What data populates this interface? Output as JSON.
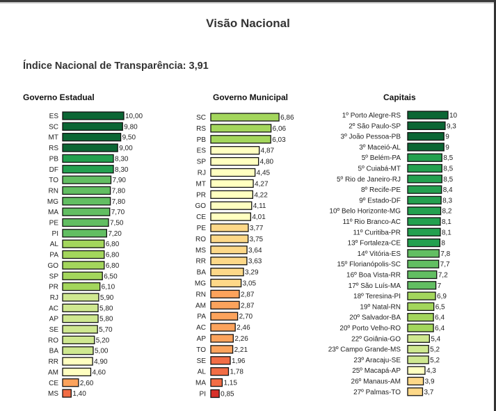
{
  "page": {
    "title": "Visão Nacional",
    "subtitle": "Índice Nacional de Transparência: 3,91"
  },
  "colors": {
    "dark_green": "#0b6634",
    "mid_green": "#23a04f",
    "green": "#62be62",
    "light_green": "#a3d65c",
    "pale_green": "#cfe890",
    "pale_yellow": "#ffffc0",
    "light_orange": "#fdd888",
    "orange": "#fca35c",
    "red_orange": "#f26d45",
    "red": "#d7312a"
  },
  "chart_data": [
    {
      "type": "bar",
      "orientation": "horizontal",
      "title": "Governo Estadual",
      "categories": [
        "ES",
        "SC",
        "MT",
        "RS",
        "PB",
        "DF",
        "TO",
        "RN",
        "MG",
        "MA",
        "PE",
        "PI",
        "AL",
        "PA",
        "GO",
        "SP",
        "PR",
        "RJ",
        "AC",
        "AP",
        "SE",
        "RO",
        "BA",
        "RR",
        "AM",
        "CE",
        "MS"
      ],
      "values": [
        10.0,
        9.8,
        9.5,
        9.0,
        8.3,
        8.3,
        7.9,
        7.8,
        7.8,
        7.7,
        7.5,
        7.2,
        6.8,
        6.8,
        6.8,
        6.5,
        6.1,
        5.9,
        5.8,
        5.8,
        5.7,
        5.2,
        5.0,
        4.9,
        4.6,
        2.6,
        1.4
      ],
      "labels": [
        "10,00",
        "9,80",
        "9,50",
        "9,00",
        "8,30",
        "8,30",
        "7,90",
        "7,80",
        "7,80",
        "7,70",
        "7,50",
        "7,20",
        "6,80",
        "6,80",
        "6,80",
        "6,50",
        "6,10",
        "5,90",
        "5,80",
        "5,80",
        "5,70",
        "5,20",
        "5,00",
        "4,90",
        "4,60",
        "2,60",
        "1,40"
      ],
      "xlim": [
        0,
        10
      ]
    },
    {
      "type": "bar",
      "orientation": "horizontal",
      "title": "Governo Municipal",
      "categories": [
        "SC",
        "RS",
        "PB",
        "ES",
        "SP",
        "RJ",
        "MT",
        "PR",
        "GO",
        "CE",
        "PE",
        "RO",
        "MS",
        "RR",
        "BA",
        "MG",
        "RN",
        "AM",
        "PA",
        "AC",
        "AP",
        "TO",
        "SE",
        "AL",
        "MA",
        "PI"
      ],
      "values": [
        6.86,
        6.06,
        6.03,
        4.87,
        4.8,
        4.45,
        4.27,
        4.22,
        4.11,
        4.01,
        3.77,
        3.75,
        3.64,
        3.63,
        3.29,
        3.05,
        2.87,
        2.87,
        2.7,
        2.46,
        2.26,
        2.21,
        1.96,
        1.78,
        1.15,
        0.85
      ],
      "labels": [
        "6,86",
        "6,06",
        "6,03",
        "4,87",
        "4,80",
        "4,45",
        "4,27",
        "4,22",
        "4,11",
        "4,01",
        "3,77",
        "3,75",
        "3,64",
        "3,63",
        "3,29",
        "3,05",
        "2,87",
        "2,87",
        "2,70",
        "2,46",
        "2,26",
        "2,21",
        "1,96",
        "1,78",
        "1,15",
        "0,85"
      ],
      "xlim": [
        0,
        7
      ]
    },
    {
      "type": "bar",
      "orientation": "horizontal",
      "title": "Capitais",
      "categories": [
        "1º Porto Alegre-RS",
        "2º São Paulo-SP",
        "3º João Pessoa-PB",
        "3º Maceió-AL",
        "5º Belém-PA",
        "5º Cuiabá-MT",
        "5º Rio de Janeiro-RJ",
        "8º Recife-PE",
        "9º Estado-DF",
        "10º Belo Horizonte-MG",
        "11º Rio Branco-AC",
        "11º Curitiba-PR",
        "13º Fortaleza-CE",
        "14º Vitória-ES",
        "15º Florianópolis-SC",
        "16º Boa Vista-RR",
        "17º São Luís-MA",
        "18º Teresina-PI",
        "19º Natal-RN",
        "20º Salvador-BA",
        "20º Porto Velho-RO",
        "22º Goiânia-GO",
        "23º Campo Grande-MS",
        "23º Aracaju-SE",
        "25º Macapá-AP",
        "26º Manaus-AM",
        "27º Palmas-TO"
      ],
      "values": [
        10,
        9.3,
        9,
        9,
        8.5,
        8.5,
        8.5,
        8.4,
        8.3,
        8.2,
        8.1,
        8.1,
        8,
        7.8,
        7.7,
        7.2,
        7,
        6.9,
        6.5,
        6.4,
        6.4,
        5.4,
        5.2,
        5.2,
        4.3,
        3.9,
        3.7
      ],
      "labels": [
        "10",
        "9,3",
        "9",
        "9",
        "8,5",
        "8,5",
        "8,5",
        "8,4",
        "8,3",
        "8,2",
        "8,1",
        "8,1",
        "8",
        "7,8",
        "7,7",
        "7,2",
        "7",
        "6,9",
        "6,5",
        "6,4",
        "6,4",
        "5,4",
        "5,2",
        "5,2",
        "4,3",
        "3,9",
        "3,7"
      ],
      "xlim": [
        0,
        10
      ]
    }
  ]
}
